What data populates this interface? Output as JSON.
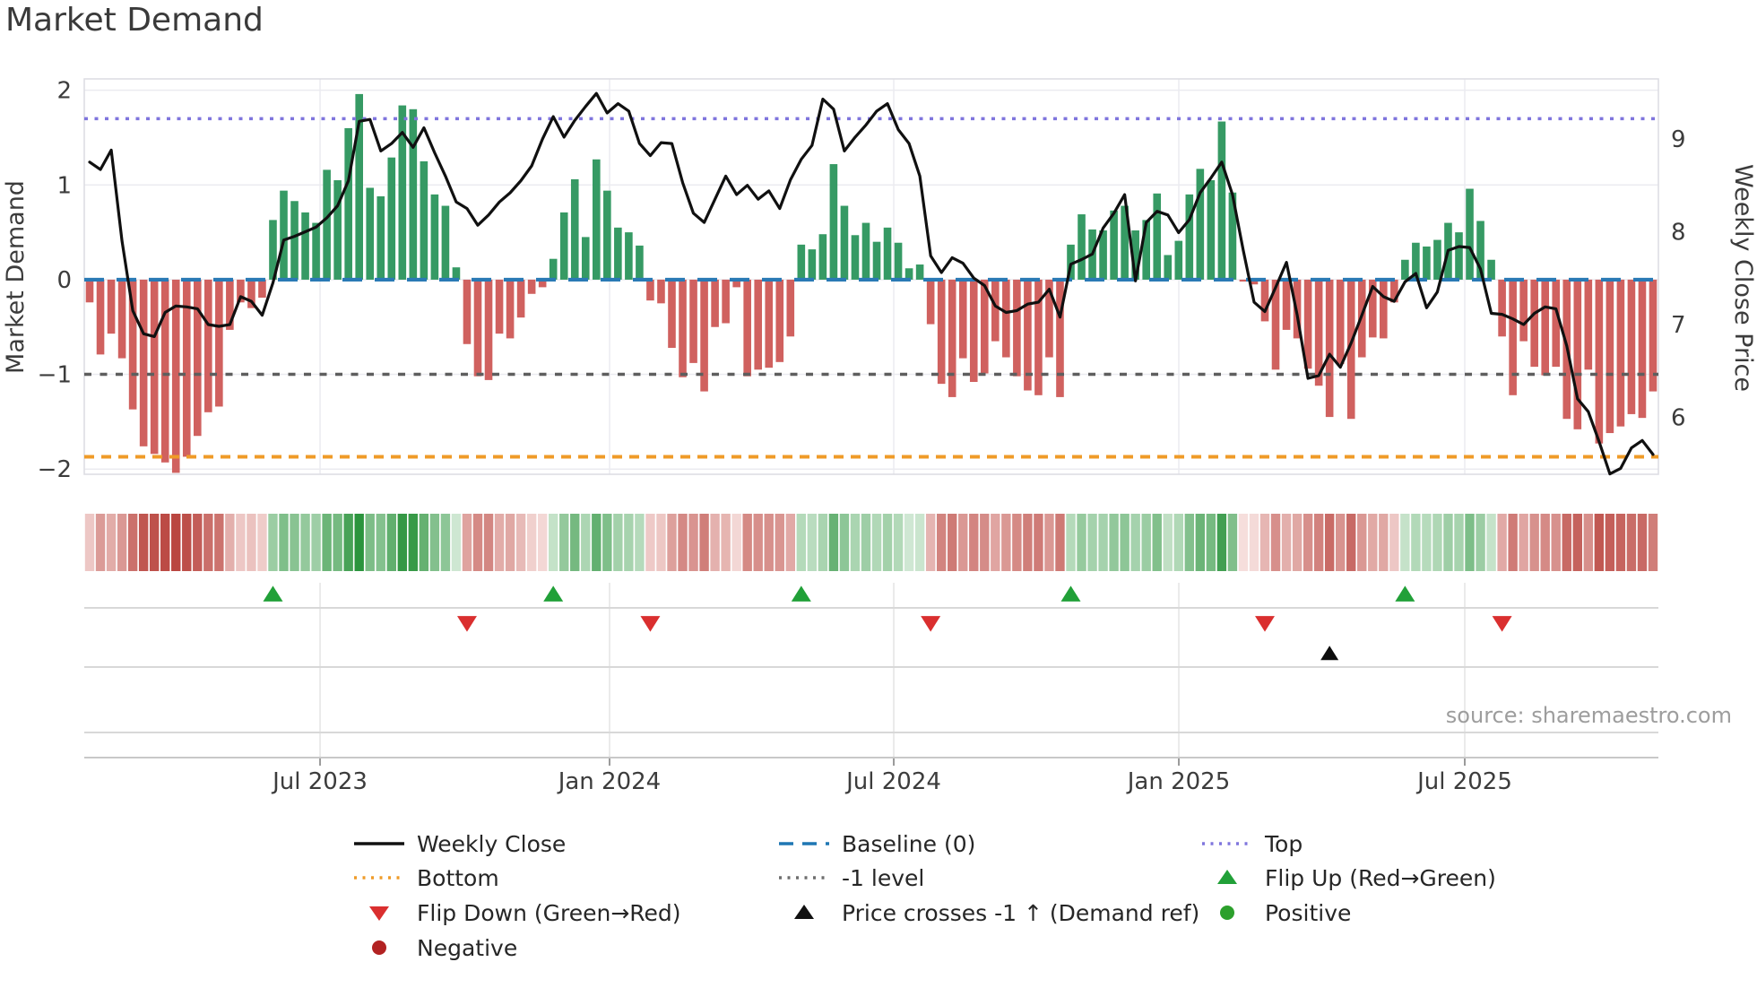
{
  "title": "Market Demand",
  "source": "source: sharemaestro.com",
  "axes": {
    "left_label": "Market Demand",
    "right_label": "Weekly Close Price",
    "left_ticks": [
      {
        "label": "2",
        "value": 2
      },
      {
        "label": "1",
        "value": 1
      },
      {
        "label": "0",
        "value": 0
      },
      {
        "label": "−1",
        "value": -1
      },
      {
        "label": "−2",
        "value": -2
      }
    ],
    "right_ticks": [
      {
        "label": "9",
        "value": 9
      },
      {
        "label": "8",
        "value": 8
      },
      {
        "label": "7",
        "value": 7
      },
      {
        "label": "6",
        "value": 6
      }
    ],
    "x_ticks": [
      {
        "label": "Jul 2023",
        "pos": 21.37
      },
      {
        "label": "Jan 2024",
        "pos": 48.22
      },
      {
        "label": "Jul 2024",
        "pos": 74.58
      },
      {
        "label": "Jan 2025",
        "pos": 101.02
      },
      {
        "label": "Jul 2025",
        "pos": 127.54
      }
    ]
  },
  "colors": {
    "bar_pos": "#369a64",
    "bar_neg": "#d0615f",
    "price_line": "#101010",
    "baseline": "#2a7ab5",
    "top_line": "#7f75dd",
    "bottom_line": "#ef9b28",
    "minus_one_line": "#5e5e5e",
    "flip_up": "#21a038",
    "flip_down": "#da2f2f",
    "price_cross": "#0d0d0d",
    "positive_dot": "#2ca02c",
    "negative_dot": "#b22222",
    "grid": "#ebebf0",
    "frame": "#dcdce2",
    "panel_line": "#d8d8d8"
  },
  "chart_data": {
    "type": "bar+line",
    "x_unit": "weekly",
    "n_points": 146,
    "ylim_left": [
      -2.055,
      2.12
    ],
    "ylim_right": [
      5.386,
      9.647
    ],
    "grid_levels_left": [
      2,
      1,
      0,
      -1,
      -2
    ],
    "levels": {
      "baseline": 0,
      "top": 1.7,
      "bottom": -1.87,
      "minus_one": -1
    },
    "series": [
      {
        "name": "Market Demand",
        "type": "bar",
        "axis": "left",
        "values": [
          -0.24,
          -0.79,
          -0.57,
          -0.83,
          -1.37,
          -1.76,
          -1.84,
          -1.93,
          -2.04,
          -1.87,
          -1.65,
          -1.4,
          -1.34,
          -0.53,
          -0.24,
          -0.3,
          -0.19,
          0.63,
          0.94,
          0.83,
          0.71,
          0.6,
          1.16,
          1.05,
          1.6,
          1.96,
          0.97,
          0.88,
          1.29,
          1.84,
          1.8,
          1.25,
          0.9,
          0.78,
          0.13,
          -0.68,
          -1.02,
          -1.06,
          -0.57,
          -0.62,
          -0.4,
          -0.15,
          -0.08,
          0.22,
          0.71,
          1.06,
          0.45,
          1.27,
          0.94,
          0.55,
          0.5,
          0.36,
          -0.22,
          -0.25,
          -0.72,
          -1.03,
          -0.88,
          -1.18,
          -0.5,
          -0.46,
          -0.08,
          -1.02,
          -0.95,
          -0.93,
          -0.87,
          -0.6,
          0.37,
          0.32,
          0.48,
          1.22,
          0.78,
          0.47,
          0.6,
          0.4,
          0.55,
          0.39,
          0.12,
          0.16,
          -0.47,
          -1.1,
          -1.24,
          -0.83,
          -1.08,
          -0.99,
          -0.65,
          -0.82,
          -1.02,
          -1.17,
          -1.22,
          -0.82,
          -1.24,
          0.37,
          0.69,
          0.53,
          0.52,
          0.73,
          0.78,
          0.52,
          0.63,
          0.91,
          0.26,
          0.41,
          0.9,
          1.17,
          1.05,
          1.67,
          0.92,
          -0.02,
          -0.05,
          -0.44,
          -0.95,
          -0.53,
          -0.62,
          -0.94,
          -1.12,
          -1.45,
          -0.89,
          -1.47,
          -0.82,
          -0.61,
          -0.62,
          -0.24,
          0.21,
          0.39,
          0.35,
          0.42,
          0.6,
          0.5,
          0.96,
          0.62,
          0.21,
          -0.6,
          -1.22,
          -0.65,
          -0.92,
          -1.01,
          -0.92,
          -1.47,
          -1.58,
          -0.95,
          -1.73,
          -1.62,
          -1.55,
          -1.42,
          -1.46,
          -1.18
        ]
      },
      {
        "name": "Weekly Close",
        "type": "line",
        "axis": "right",
        "values": [
          8.75,
          8.67,
          8.88,
          7.9,
          7.15,
          6.9,
          6.87,
          7.13,
          7.2,
          7.19,
          7.17,
          7.0,
          6.98,
          7.0,
          7.3,
          7.25,
          7.1,
          7.45,
          7.91,
          7.95,
          8.0,
          8.05,
          8.15,
          8.28,
          8.55,
          9.19,
          9.21,
          8.87,
          8.95,
          9.07,
          8.91,
          9.12,
          8.85,
          8.6,
          8.32,
          8.25,
          8.07,
          8.18,
          8.32,
          8.42,
          8.55,
          8.71,
          9.0,
          9.24,
          9.02,
          9.2,
          9.35,
          9.49,
          9.28,
          9.38,
          9.3,
          8.95,
          8.82,
          8.96,
          8.95,
          8.53,
          8.2,
          8.1,
          8.35,
          8.6,
          8.4,
          8.5,
          8.35,
          8.44,
          8.25,
          8.56,
          8.78,
          8.93,
          9.43,
          9.32,
          8.87,
          9.02,
          9.15,
          9.3,
          9.38,
          9.1,
          8.95,
          8.6,
          7.74,
          7.56,
          7.72,
          7.66,
          7.5,
          7.42,
          7.2,
          7.13,
          7.15,
          7.22,
          7.24,
          7.38,
          7.08,
          7.65,
          7.7,
          7.76,
          8.04,
          8.2,
          8.4,
          7.47,
          8.1,
          8.22,
          8.18,
          7.99,
          8.13,
          8.42,
          8.58,
          8.75,
          8.4,
          7.8,
          7.24,
          7.14,
          7.4,
          7.67,
          7.1,
          6.42,
          6.45,
          6.68,
          6.54,
          6.8,
          7.1,
          7.41,
          7.3,
          7.25,
          7.46,
          7.55,
          7.18,
          7.35,
          7.8,
          7.84,
          7.83,
          7.6,
          7.12,
          7.11,
          7.06,
          7.0,
          7.12,
          7.19,
          7.17,
          6.77,
          6.2,
          6.06,
          5.74,
          5.39,
          5.45,
          5.67,
          5.75,
          5.6
        ]
      }
    ],
    "markers": {
      "flip_up": [
        17,
        43,
        66,
        91,
        122
      ],
      "flip_down": [
        35,
        52,
        78,
        109,
        131
      ],
      "price_cross_up": [
        115
      ]
    },
    "heat_strip": "demand values mirrored as red/green intensity cells"
  },
  "legend": {
    "items": [
      {
        "label": "Weekly Close",
        "glyph": "line",
        "color": "#111111",
        "row": 0,
        "col": 0
      },
      {
        "label": "Baseline (0)",
        "glyph": "dash",
        "color": "#1f77b4",
        "row": 0,
        "col": 1
      },
      {
        "label": "Top",
        "glyph": "dots",
        "color": "#7f75dd",
        "row": 0,
        "col": 2
      },
      {
        "label": "Bottom",
        "glyph": "dots",
        "color": "#ef9b28",
        "row": 1,
        "col": 0
      },
      {
        "label": "-1 level",
        "glyph": "dots",
        "color": "#6e6e6e",
        "row": 1,
        "col": 1
      },
      {
        "label": "Flip Up (Red→Green)",
        "glyph": "tri-up",
        "color": "#21a038",
        "row": 1,
        "col": 2
      },
      {
        "label": "Flip Down (Green→Red)",
        "glyph": "tri-down",
        "color": "#da2f2f",
        "row": 2,
        "col": 0
      },
      {
        "label": "Price crosses -1 ↑ (Demand ref)",
        "glyph": "tri-up",
        "color": "#111111",
        "row": 2,
        "col": 1
      },
      {
        "label": "Positive",
        "glyph": "circle",
        "color": "#2ca02c",
        "row": 2,
        "col": 2
      },
      {
        "label": "Negative",
        "glyph": "circle",
        "color": "#b22222",
        "row": 3,
        "col": 0
      }
    ]
  }
}
